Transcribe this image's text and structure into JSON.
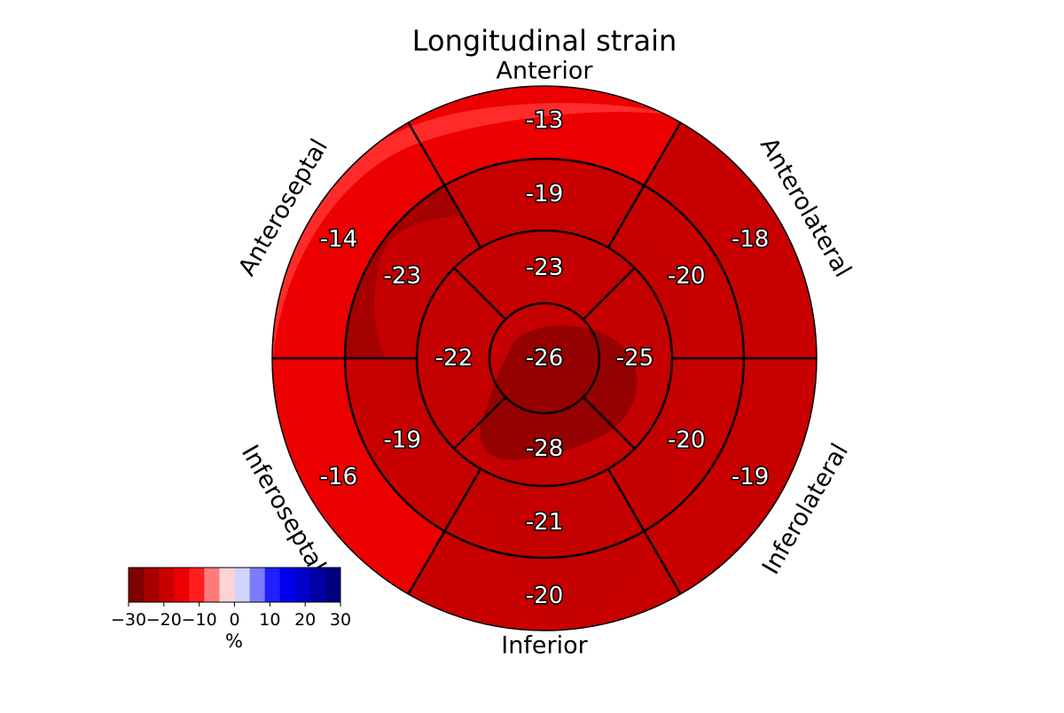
{
  "chart_data": {
    "type": "bullseye",
    "title": "Longitudinal strain",
    "walls": [
      {
        "name": "Anterior",
        "angle": 90
      },
      {
        "name": "Anterolateral",
        "angle": 30
      },
      {
        "name": "Inferolateral",
        "angle": -30
      },
      {
        "name": "Inferior",
        "angle": -90
      },
      {
        "name": "Inferoseptal",
        "angle": -150
      },
      {
        "name": "Anteroseptal",
        "angle": 150
      }
    ],
    "segments": [
      {
        "id": 1,
        "ring": "basal",
        "wall": "Anterior",
        "value": -13
      },
      {
        "id": 2,
        "ring": "basal",
        "wall": "Anteroseptal",
        "value": -14
      },
      {
        "id": 3,
        "ring": "basal",
        "wall": "Inferoseptal",
        "value": -16
      },
      {
        "id": 4,
        "ring": "basal",
        "wall": "Inferior",
        "value": -20
      },
      {
        "id": 5,
        "ring": "basal",
        "wall": "Inferolateral",
        "value": -19
      },
      {
        "id": 6,
        "ring": "basal",
        "wall": "Anterolateral",
        "value": -18
      },
      {
        "id": 7,
        "ring": "mid",
        "wall": "Anterior",
        "value": -19
      },
      {
        "id": 8,
        "ring": "mid",
        "wall": "Anteroseptal",
        "value": -23
      },
      {
        "id": 9,
        "ring": "mid",
        "wall": "Inferoseptal",
        "value": -19
      },
      {
        "id": 10,
        "ring": "mid",
        "wall": "Inferior",
        "value": -21
      },
      {
        "id": 11,
        "ring": "mid",
        "wall": "Inferolateral",
        "value": -20
      },
      {
        "id": 12,
        "ring": "mid",
        "wall": "Anterolateral",
        "value": -20
      },
      {
        "id": 13,
        "ring": "apical",
        "wall": "Anterior",
        "value": -23
      },
      {
        "id": 14,
        "ring": "apical",
        "wall": "Septal",
        "value": -22
      },
      {
        "id": 15,
        "ring": "apical",
        "wall": "Inferior",
        "value": -28
      },
      {
        "id": 16,
        "ring": "apical",
        "wall": "Lateral",
        "value": -25
      },
      {
        "id": 17,
        "ring": "apex",
        "wall": "Apex",
        "value": -26
      }
    ],
    "colorbar": {
      "unit": "%",
      "vmin": -30,
      "vmax": 30,
      "ticks": [
        -30,
        -20,
        -10,
        0,
        10,
        20,
        30
      ],
      "tick_labels": [
        "−30",
        "−20",
        "−10",
        "0",
        "10",
        "20",
        "30"
      ],
      "colors": [
        "#800000",
        "#a40000",
        "#c80000",
        "#ec0000",
        "#ff1f1f",
        "#ff7b7b",
        "#ffd3d3",
        "#d3d3ff",
        "#7b7bff",
        "#1f1fff",
        "#0000ec",
        "#0000c8",
        "#0000a4",
        "#000080"
      ]
    }
  }
}
